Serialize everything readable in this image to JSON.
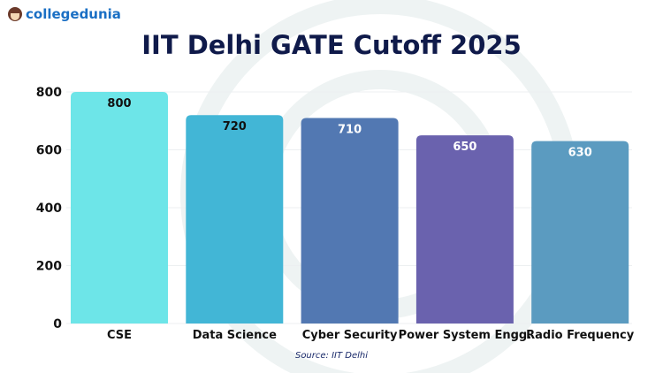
{
  "brand": {
    "name": "collegedunia"
  },
  "source": "Source: IIT Delhi",
  "chart_data": {
    "type": "bar",
    "title": "IIT Delhi GATE Cutoff 2025",
    "categories": [
      "CSE",
      "Data Science",
      "Cyber Security",
      "Power System Engg.",
      "Radio Frequency"
    ],
    "values": [
      800,
      720,
      710,
      650,
      630
    ],
    "colors": [
      "#6de5e8",
      "#42b6d6",
      "#5278b2",
      "#6a62ae",
      "#5b9bc0"
    ],
    "label_colors": [
      "#111111",
      "#111111",
      "#ffffff",
      "#ffffff",
      "#ffffff"
    ],
    "yticks": [
      0,
      200,
      400,
      600,
      800
    ],
    "ylim": [
      0,
      800
    ],
    "xlabel": "",
    "ylabel": "",
    "grid": true,
    "data_labels": true
  }
}
